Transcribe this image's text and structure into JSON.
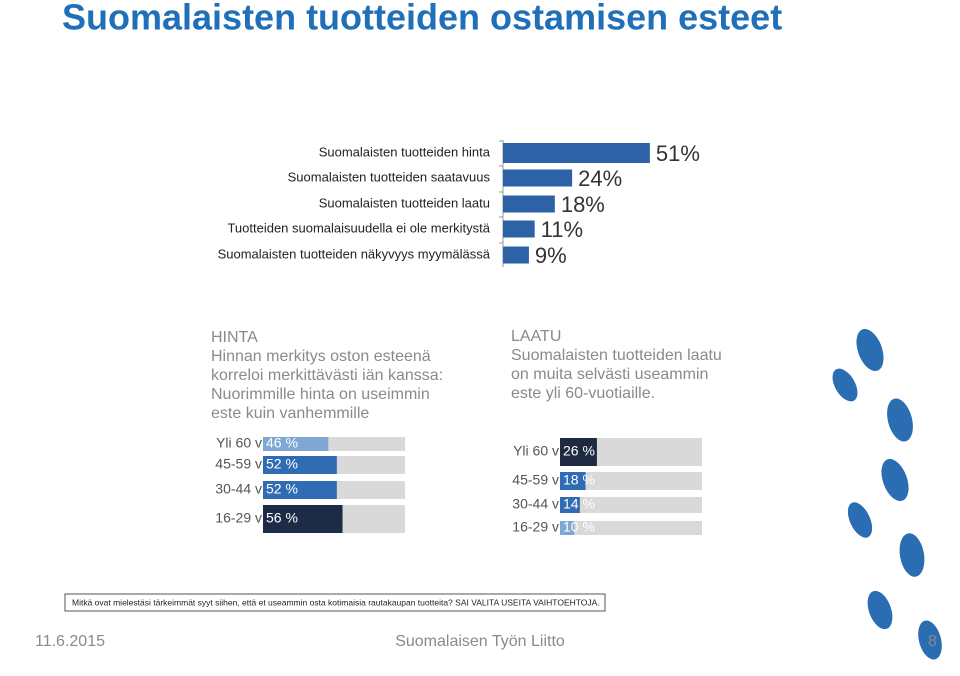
{
  "title": "Suomalaisten tuotteiden ostamisen esteet",
  "chart_data": [
    {
      "type": "bar",
      "categories": [
        "Suomalaisten tuotteiden hinta",
        "Suomalaisten tuotteiden saatavuus",
        "Suomalaisten tuotteiden laatu",
        "Tuotteiden suomalaisuudella ei ole merkitystä",
        "Suomalaisten tuotteiden näkyvyys myymälässä"
      ],
      "values": [
        51,
        24,
        18,
        11,
        9
      ],
      "value_labels": [
        "51%",
        "24%",
        "18%",
        "11%",
        "9%"
      ],
      "color": "#2d62a6"
    },
    {
      "type": "bar",
      "heading": "HINTA",
      "text": [
        "Hinnan merkitys oston esteenä",
        "korreloi merkittävästi iän kanssa:",
        "Nuorimmille hinta on useimmin",
        "este kuin vanhemmille"
      ],
      "categories": [
        "Yli 60 v",
        "45-59 v",
        "30-44 v",
        "16-29 v"
      ],
      "values": [
        46,
        52,
        52,
        56
      ],
      "value_labels": [
        "46 %",
        "52 %",
        "52 %",
        "56 %"
      ],
      "colors": [
        "#7ea7d3",
        "#2f6cb4",
        "#2f6cb4",
        "#1e2b47"
      ]
    },
    {
      "type": "bar",
      "heading": "LAATU",
      "text": [
        "Suomalaisten tuotteiden laatu",
        "on muita selvästi useammin",
        "este yli 60-vuotiaille."
      ],
      "categories": [
        "Yli 60 v",
        "45-59 v",
        "30-44 v",
        "16-29 v"
      ],
      "values": [
        26,
        18,
        14,
        10
      ],
      "value_labels": [
        "26 %",
        "18 %",
        "14 %",
        "10 %"
      ],
      "colors": [
        "#1e2a40",
        "#2f6cb4",
        "#2f6cb4",
        "#7ea7d3"
      ]
    }
  ],
  "question": "Mitkä ovat mielestäsi tärkeimmät syyt siihen, että et useammin osta kotimaisia rautakaupan tuotteita? SAI VALITA USEITA VAIHTOEHTOJA.",
  "footer": {
    "date": "11.6.2015",
    "organization": "Suomalaisen Työn Liitto",
    "page": 8
  }
}
